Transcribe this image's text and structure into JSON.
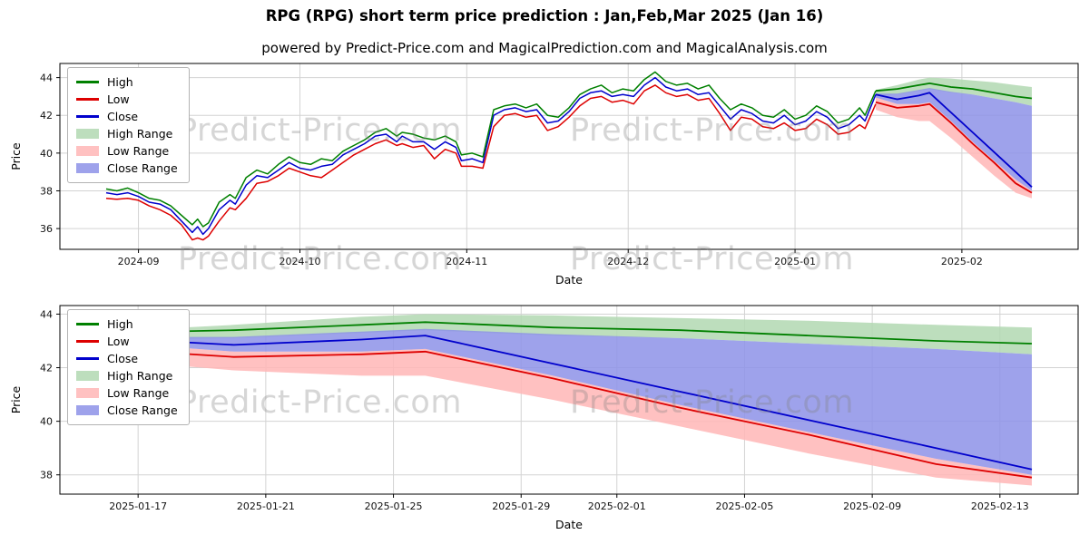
{
  "title": "RPG (RPG) short term price prediction : Jan,Feb,Mar 2025 (Jan 16)",
  "subtitle": "powered by Predict-Price.com and MagicalPrediction.com and MagicalAnalysis.com",
  "watermark": "Predict-Price.com",
  "colors": {
    "high": "#008000",
    "low": "#dd0000",
    "close": "#0000cc",
    "high_range": "#b2d8b2",
    "low_range": "#ffb6b6",
    "close_range": "#8d92e8",
    "grid": "#d3d3d3",
    "spine": "#000000",
    "tick_text": "#111111"
  },
  "legend": [
    {
      "label": "High",
      "type": "line",
      "color": "high"
    },
    {
      "label": "Low",
      "type": "line",
      "color": "low"
    },
    {
      "label": "Close",
      "type": "line",
      "color": "close"
    },
    {
      "label": "High Range",
      "type": "patch",
      "color": "high_range"
    },
    {
      "label": "Low Range",
      "type": "patch",
      "color": "low_range"
    },
    {
      "label": "Close Range",
      "type": "patch",
      "color": "close_range"
    }
  ],
  "chart_data": [
    {
      "type": "line",
      "name": "history-with-prediction",
      "x_unit": "days since 2024-08-26",
      "xlabel": "Date",
      "ylabel": "Price",
      "xlim": [
        -8.6,
        180.6
      ],
      "ylim": [
        34.9,
        44.75
      ],
      "grid": true,
      "legend_position": "upper left",
      "yticks": [
        36,
        38,
        40,
        42,
        44
      ],
      "xticks": [
        {
          "day": 6,
          "label": "2024-09"
        },
        {
          "day": 36,
          "label": "2024-10"
        },
        {
          "day": 67,
          "label": "2024-11"
        },
        {
          "day": 97,
          "label": "2024-12"
        },
        {
          "day": 128,
          "label": "2025-01"
        },
        {
          "day": 159,
          "label": "2025-02"
        }
      ],
      "history": {
        "days": [
          0,
          2,
          4,
          6,
          8,
          10,
          12,
          14,
          16,
          17,
          18,
          19,
          21,
          23,
          24,
          26,
          28,
          30,
          32,
          34,
          36,
          38,
          40,
          42,
          44,
          46,
          48,
          50,
          52,
          54,
          55,
          57,
          59,
          61,
          63,
          65,
          66,
          68,
          70,
          72,
          74,
          76,
          78,
          80,
          82,
          84,
          86,
          88,
          90,
          92,
          94,
          96,
          98,
          100,
          102,
          104,
          106,
          108,
          110,
          112,
          114,
          116,
          118,
          120,
          122,
          124,
          126,
          128,
          130,
          132,
          134,
          136,
          138,
          140,
          141,
          143
        ],
        "high": [
          38.1,
          38.0,
          38.15,
          37.9,
          37.6,
          37.5,
          37.2,
          36.7,
          36.2,
          36.5,
          36.1,
          36.3,
          37.4,
          37.8,
          37.6,
          38.7,
          39.1,
          38.9,
          39.4,
          39.8,
          39.5,
          39.4,
          39.7,
          39.6,
          40.1,
          40.4,
          40.7,
          41.1,
          41.3,
          40.9,
          41.1,
          41.0,
          40.8,
          40.7,
          40.9,
          40.6,
          39.9,
          40.0,
          39.8,
          42.3,
          42.5,
          42.6,
          42.4,
          42.6,
          42.0,
          41.9,
          42.4,
          43.1,
          43.4,
          43.6,
          43.2,
          43.4,
          43.3,
          43.9,
          44.3,
          43.8,
          43.6,
          43.7,
          43.4,
          43.6,
          42.9,
          42.3,
          42.6,
          42.4,
          42.0,
          41.9,
          42.3,
          41.8,
          42.0,
          42.5,
          42.2,
          41.6,
          41.8,
          42.4,
          42.0,
          43.3
        ],
        "low": [
          37.6,
          37.55,
          37.6,
          37.5,
          37.2,
          37.0,
          36.7,
          36.2,
          35.4,
          35.5,
          35.4,
          35.6,
          36.4,
          37.1,
          37.0,
          37.6,
          38.4,
          38.5,
          38.8,
          39.2,
          39.0,
          38.8,
          38.7,
          39.1,
          39.5,
          39.9,
          40.2,
          40.5,
          40.7,
          40.4,
          40.5,
          40.3,
          40.4,
          39.7,
          40.2,
          40.0,
          39.3,
          39.3,
          39.2,
          41.4,
          42.0,
          42.1,
          41.9,
          42.0,
          41.2,
          41.4,
          41.9,
          42.5,
          42.9,
          43.0,
          42.7,
          42.8,
          42.6,
          43.3,
          43.6,
          43.2,
          43.0,
          43.1,
          42.8,
          42.9,
          42.1,
          41.2,
          41.9,
          41.8,
          41.4,
          41.3,
          41.6,
          41.2,
          41.3,
          41.8,
          41.5,
          41.0,
          41.1,
          41.5,
          41.3,
          42.6
        ],
        "close": [
          37.9,
          37.8,
          37.9,
          37.7,
          37.4,
          37.3,
          37.0,
          36.4,
          35.8,
          36.1,
          35.7,
          36.0,
          37.0,
          37.5,
          37.3,
          38.3,
          38.8,
          38.7,
          39.1,
          39.5,
          39.2,
          39.1,
          39.3,
          39.4,
          39.9,
          40.2,
          40.5,
          40.9,
          41.0,
          40.6,
          40.9,
          40.6,
          40.6,
          40.2,
          40.6,
          40.3,
          39.6,
          39.7,
          39.5,
          42.0,
          42.3,
          42.4,
          42.2,
          42.3,
          41.6,
          41.7,
          42.2,
          42.9,
          43.2,
          43.3,
          43.0,
          43.1,
          43.0,
          43.6,
          44.0,
          43.5,
          43.3,
          43.4,
          43.1,
          43.2,
          42.5,
          41.8,
          42.3,
          42.1,
          41.7,
          41.6,
          42.0,
          41.5,
          41.7,
          42.2,
          41.9,
          41.3,
          41.5,
          42.0,
          41.7,
          43.1
        ]
      },
      "prediction": {
        "days": [
          143,
          147,
          151,
          153,
          157,
          161,
          165,
          169,
          172
        ],
        "high": [
          43.3,
          43.4,
          43.6,
          43.7,
          43.5,
          43.4,
          43.2,
          43.0,
          42.9
        ],
        "low": [
          42.7,
          42.4,
          42.5,
          42.6,
          41.6,
          40.5,
          39.5,
          38.4,
          37.9
        ],
        "close": [
          43.1,
          42.85,
          43.05,
          43.2,
          42.15,
          41.1,
          40.05,
          39.0,
          38.2
        ],
        "high_upper": [
          43.35,
          43.6,
          43.9,
          44.0,
          43.95,
          43.85,
          43.75,
          43.6,
          43.5
        ],
        "high_lower": [
          43.05,
          43.1,
          43.3,
          43.4,
          43.2,
          43.1,
          42.9,
          42.7,
          42.5
        ],
        "close_upper": [
          43.15,
          43.15,
          43.35,
          43.45,
          43.25,
          43.1,
          42.9,
          42.7,
          42.5
        ],
        "close_lower": [
          42.95,
          42.6,
          42.6,
          42.7,
          41.7,
          40.6,
          39.6,
          38.6,
          38.0
        ],
        "low_upper": [
          42.95,
          42.6,
          42.6,
          42.7,
          41.7,
          40.6,
          39.6,
          38.6,
          38.0
        ],
        "low_lower": [
          42.3,
          41.9,
          41.7,
          41.7,
          40.8,
          39.8,
          38.8,
          37.9,
          37.6
        ]
      }
    },
    {
      "type": "line",
      "name": "prediction-zoom",
      "x_unit": "days since 2024-08-26",
      "xlabel": "Date",
      "ylabel": "Price",
      "xlim": [
        141.55,
        173.45
      ],
      "ylim": [
        37.28,
        44.32
      ],
      "grid": true,
      "legend_position": "upper left",
      "prediction_source": 0,
      "yticks": [
        38,
        40,
        42,
        44
      ],
      "xticks": [
        {
          "day": 144,
          "label": "2025-01-17"
        },
        {
          "day": 148,
          "label": "2025-01-21"
        },
        {
          "day": 152,
          "label": "2025-01-25"
        },
        {
          "day": 156,
          "label": "2025-01-29"
        },
        {
          "day": 159,
          "label": "2025-02-01"
        },
        {
          "day": 163,
          "label": "2025-02-05"
        },
        {
          "day": 167,
          "label": "2025-02-09"
        },
        {
          "day": 171,
          "label": "2025-02-13"
        }
      ]
    }
  ]
}
